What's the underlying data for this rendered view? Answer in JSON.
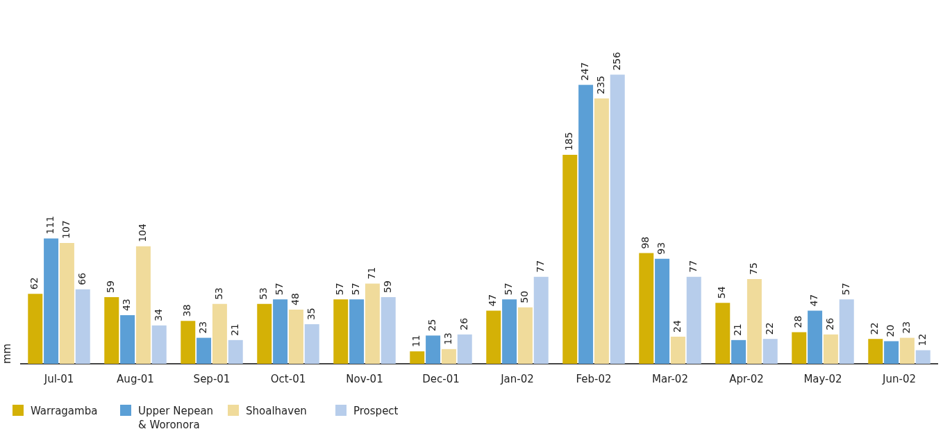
{
  "chart_data": {
    "type": "bar",
    "ylabel": "mm",
    "categories": [
      "Jul-01",
      "Aug-01",
      "Sep-01",
      "Oct-01",
      "Nov-01",
      "Dec-01",
      "Jan-02",
      "Feb-02",
      "Mar-02",
      "Apr-02",
      "May-02",
      "Jun-02"
    ],
    "series": [
      {
        "name": "Warragamba",
        "color": "#d4b106",
        "values": [
          62,
          59,
          38,
          53,
          57,
          11,
          47,
          185,
          98,
          54,
          28,
          22
        ]
      },
      {
        "name": "Upper Nepean & Woronora",
        "color": "#5b9fd6",
        "values": [
          111,
          43,
          23,
          57,
          57,
          25,
          57,
          247,
          93,
          21,
          47,
          20
        ]
      },
      {
        "name": "Shoalhaven",
        "color": "#f0db9b",
        "values": [
          107,
          104,
          53,
          48,
          71,
          13,
          50,
          235,
          24,
          75,
          26,
          23
        ]
      },
      {
        "name": "Prospect",
        "color": "#b7cdeb",
        "values": [
          66,
          34,
          21,
          35,
          59,
          26,
          77,
          256,
          77,
          22,
          57,
          12
        ]
      }
    ],
    "data_labels": true,
    "legend": "bottom",
    "tick_labels": "x",
    "grid": false
  }
}
